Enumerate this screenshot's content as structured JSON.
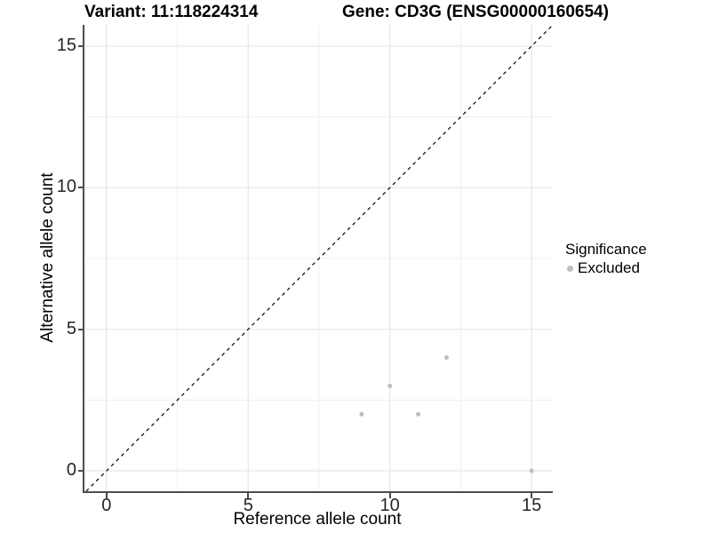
{
  "header": {
    "variant_title": "Variant: 11:118224314",
    "gene_title": "Gene: CD3G (ENSG00000160654)"
  },
  "chart_data": {
    "type": "scatter",
    "title": "Variant: 11:118224314 | Gene: CD3G (ENSG00000160654)",
    "xlabel": "Reference allele count",
    "ylabel": "Alternative allele count",
    "xlim": [
      -0.78,
      15.75
    ],
    "ylim": [
      -0.72,
      15.75
    ],
    "x_ticks": [
      0,
      5,
      10,
      15
    ],
    "y_ticks": [
      0,
      5,
      10,
      15
    ],
    "grid": {
      "major": true,
      "minor": true,
      "major_color": "#e2e2e2",
      "minor_color": "#efefef"
    },
    "identity_line": {
      "style": "dashed",
      "color": "#000000",
      "meaning": "y = x"
    },
    "series": [
      {
        "name": "Excluded",
        "color": "#bebebe",
        "marker_radius": 2.5,
        "points": [
          [
            9,
            2
          ],
          [
            10,
            3
          ],
          [
            11,
            2
          ],
          [
            12,
            4
          ],
          [
            15,
            0
          ]
        ]
      }
    ],
    "legend": {
      "title": "Significance",
      "position": "right",
      "items": [
        {
          "label": "Excluded",
          "color": "#bebebe"
        }
      ]
    }
  },
  "colors": {
    "background": "#ffffff",
    "axis_line": "#4d4d4d",
    "tick_text": "#262626",
    "title_text": "#000000",
    "point": "#bebebe"
  }
}
